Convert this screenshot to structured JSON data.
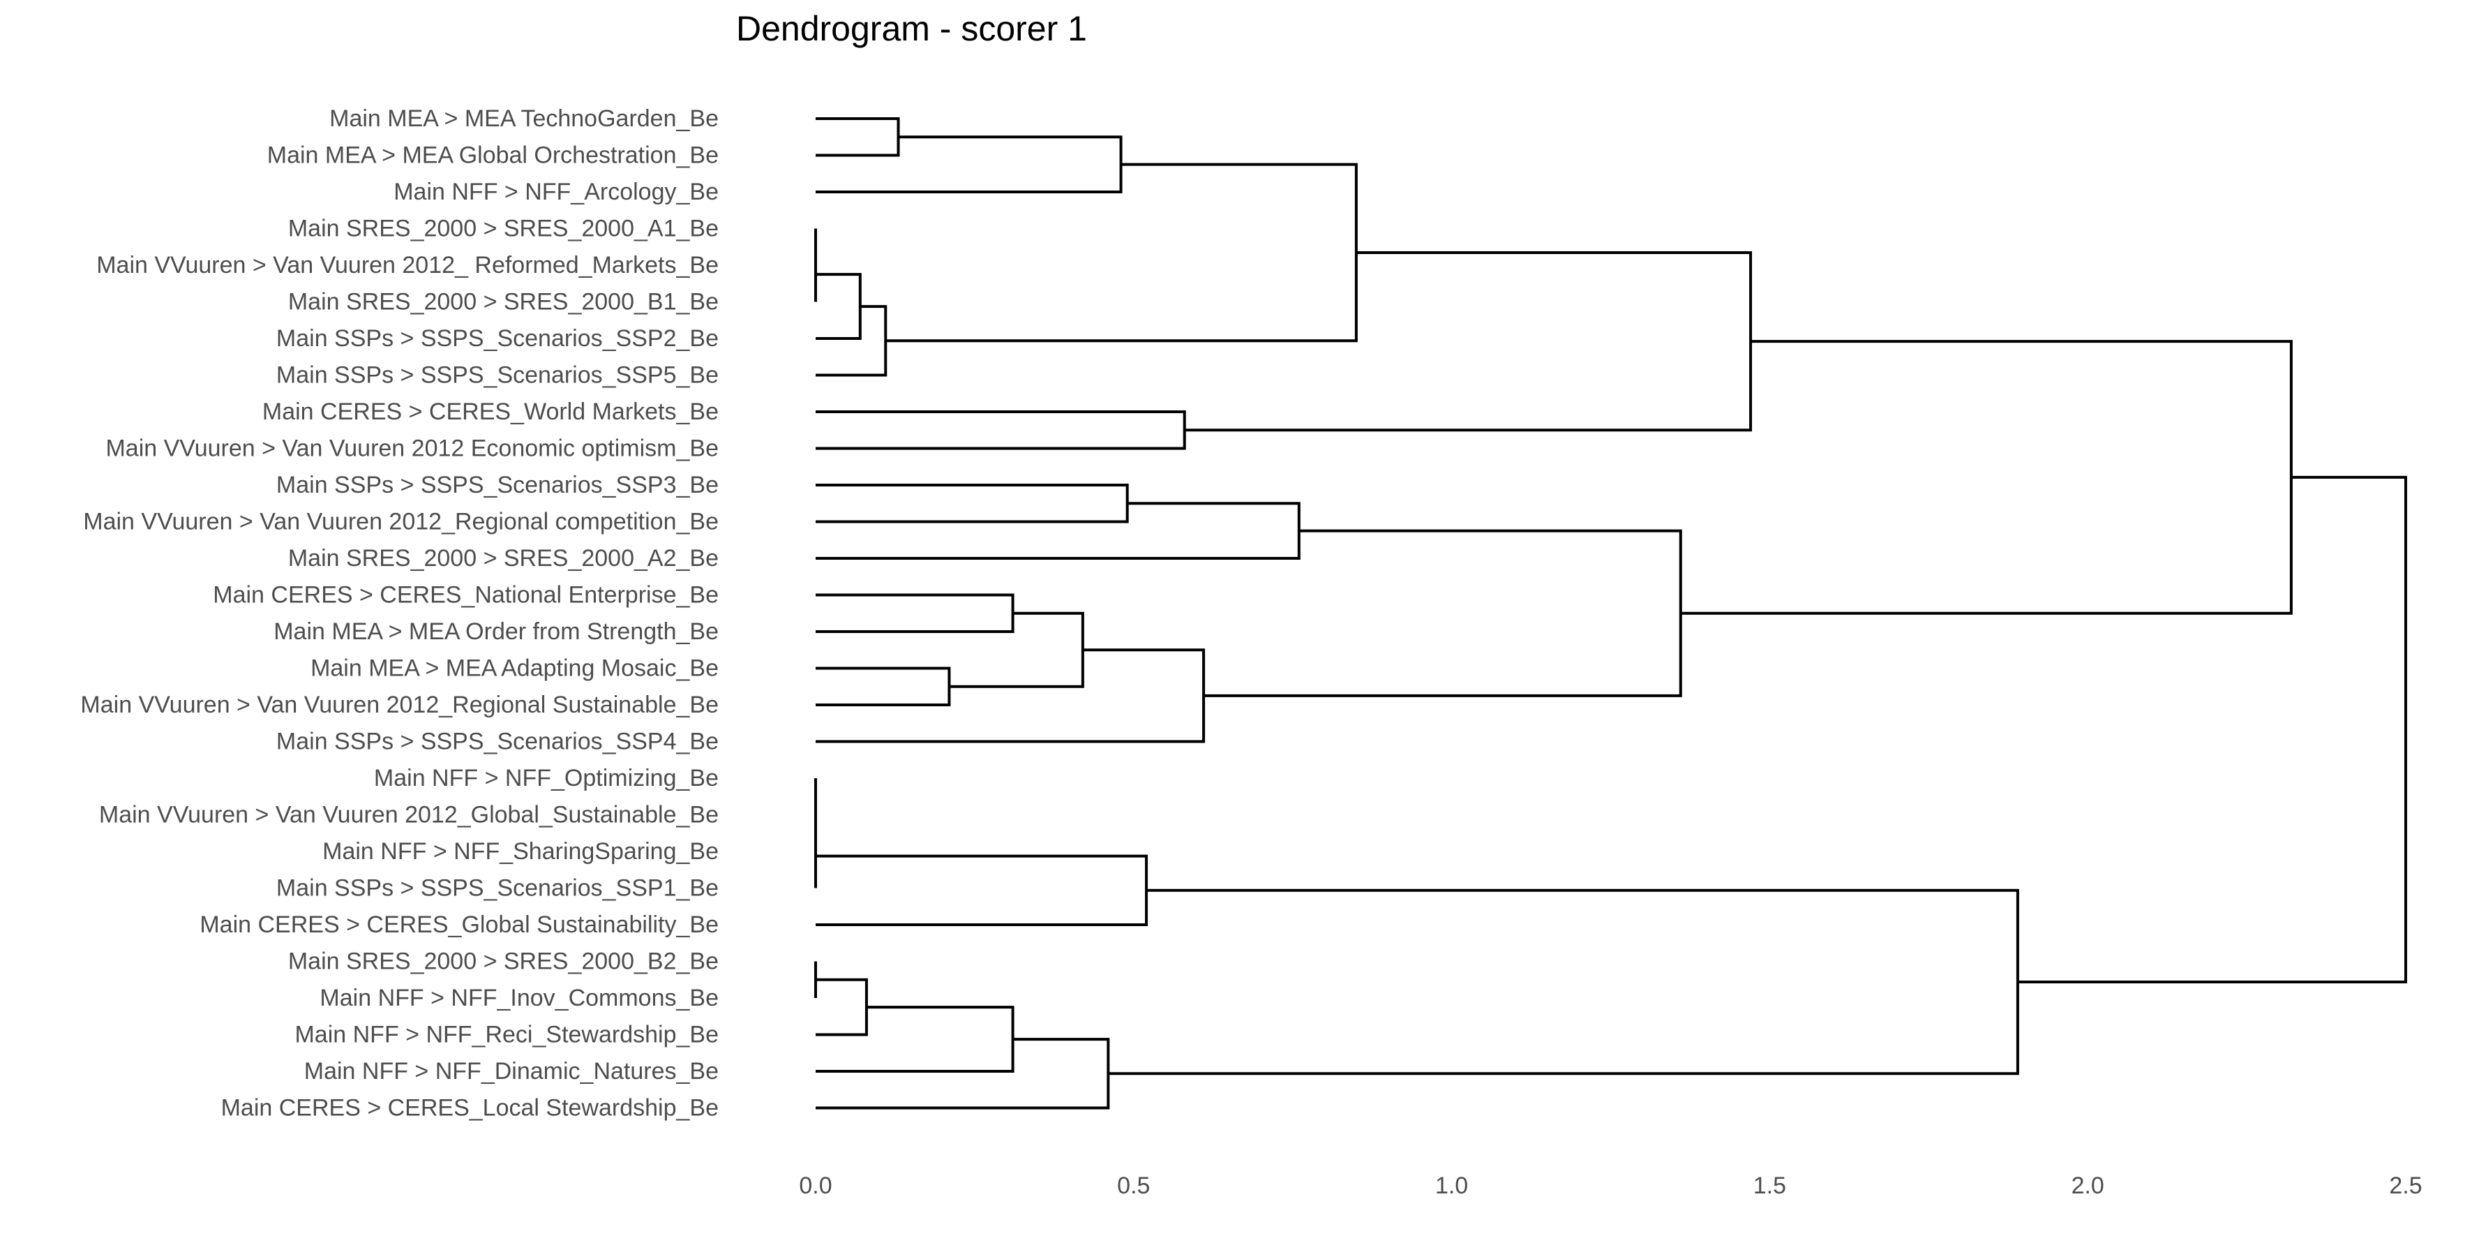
{
  "chart_data": {
    "type": "dendrogram",
    "title": "Dendrogram - scorer 1",
    "xlabel": "",
    "ylabel": "",
    "xlim": [
      0,
      2.5
    ],
    "x_ticks": [
      "0.0",
      "0.5",
      "1.0",
      "1.5",
      "2.0",
      "2.5"
    ],
    "x_tick_values": [
      0,
      0.5,
      1.0,
      1.5,
      2.0,
      2.5
    ],
    "grid": false,
    "leaves": [
      "Main MEA  > MEA TechnoGarden_Be",
      "Main MEA  > MEA Global Orchestration_Be",
      "Main NFF > NFF_Arcology_Be",
      "Main SRES_2000 > SRES_2000_A1_Be",
      "Main VVuuren > Van Vuuren 2012_ Reformed_Markets_Be",
      "Main SRES_2000 > SRES_2000_B1_Be",
      "Main SSPs > SSPS_Scenarios_SSP2_Be",
      "Main SSPs > SSPS_Scenarios_SSP5_Be",
      "Main CERES > CERES_World Markets_Be",
      "Main VVuuren > Van Vuuren 2012 Economic optimism_Be",
      "Main SSPs > SSPS_Scenarios_SSP3_Be",
      "Main VVuuren > Van Vuuren 2012_Regional competition_Be",
      "Main SRES_2000 > SRES_2000_A2_Be",
      "Main CERES > CERES_National Enterprise_Be",
      "Main MEA  > MEA Order from Strength_Be",
      "Main MEA  > MEA Adapting Mosaic_Be",
      "Main VVuuren > Van Vuuren 2012_Regional Sustainable_Be",
      "Main SSPs > SSPS_Scenarios_SSP4_Be",
      "Main NFF > NFF_Optimizing_Be",
      "Main VVuuren > Van Vuuren 2012_Global_Sustainable_Be",
      "Main NFF > NFF_SharingSparing_Be",
      "Main SSPs > SSPS_Scenarios_SSP1_Be",
      "Main CERES > CERES_Global Sustainability_Be",
      "Main SRES_2000 > SRES_2000_B2_Be",
      "Main NFF > NFF_Inov_Commons_Be",
      "Main NFF > NFF_Reci_Stewardship_Be",
      "Main NFF > NFF_Dinamic_Natures_Be",
      "Main CERES > CERES_Local Stewardship_Be"
    ],
    "merges": [
      {
        "id": "m1",
        "height": 0.13,
        "children": [
          "L0",
          "L1"
        ]
      },
      {
        "id": "m2",
        "height": 0.48,
        "children": [
          "m1",
          "L2"
        ]
      },
      {
        "id": "m3",
        "height": 0.0,
        "children": [
          "L3",
          "L4"
        ]
      },
      {
        "id": "m4",
        "height": 0.0,
        "children": [
          "m3",
          "L5"
        ]
      },
      {
        "id": "m5",
        "height": 0.07,
        "children": [
          "m4",
          "L6"
        ]
      },
      {
        "id": "m6",
        "height": 0.11,
        "children": [
          "m5",
          "L7"
        ]
      },
      {
        "id": "m7",
        "height": 0.85,
        "children": [
          "m2",
          "m6"
        ]
      },
      {
        "id": "m8",
        "height": 0.58,
        "children": [
          "L8",
          "L9"
        ]
      },
      {
        "id": "m9",
        "height": 1.47,
        "children": [
          "m7",
          "m8"
        ]
      },
      {
        "id": "m10",
        "height": 0.49,
        "children": [
          "L10",
          "L11"
        ]
      },
      {
        "id": "m11",
        "height": 0.76,
        "children": [
          "m10",
          "L12"
        ]
      },
      {
        "id": "m12",
        "height": 0.31,
        "children": [
          "L13",
          "L14"
        ]
      },
      {
        "id": "m13",
        "height": 0.21,
        "children": [
          "L15",
          "L16"
        ]
      },
      {
        "id": "m14",
        "height": 0.42,
        "children": [
          "m12",
          "m13"
        ]
      },
      {
        "id": "m15",
        "height": 0.61,
        "children": [
          "m14",
          "L17"
        ]
      },
      {
        "id": "m16",
        "height": 1.36,
        "children": [
          "m11",
          "m15"
        ]
      },
      {
        "id": "m17",
        "height": 2.32,
        "children": [
          "m9",
          "m16"
        ]
      },
      {
        "id": "m18",
        "height": 0.0,
        "children": [
          "L18",
          "L19"
        ]
      },
      {
        "id": "m19",
        "height": 0.0,
        "children": [
          "m18",
          "L20"
        ]
      },
      {
        "id": "m20",
        "height": 0.0,
        "children": [
          "m19",
          "L21"
        ]
      },
      {
        "id": "m21",
        "height": 0.52,
        "children": [
          "m20",
          "L22"
        ]
      },
      {
        "id": "m22",
        "height": 0.0,
        "children": [
          "L23",
          "L24"
        ]
      },
      {
        "id": "m23",
        "height": 0.08,
        "children": [
          "m22",
          "L25"
        ]
      },
      {
        "id": "m24",
        "height": 0.31,
        "children": [
          "m23",
          "L26"
        ]
      },
      {
        "id": "m25",
        "height": 0.46,
        "children": [
          "m24",
          "L27"
        ]
      },
      {
        "id": "m26",
        "height": 1.89,
        "children": [
          "m21",
          "m25"
        ]
      },
      {
        "id": "m27",
        "height": 2.5,
        "children": [
          "m17",
          "m26"
        ]
      }
    ]
  }
}
